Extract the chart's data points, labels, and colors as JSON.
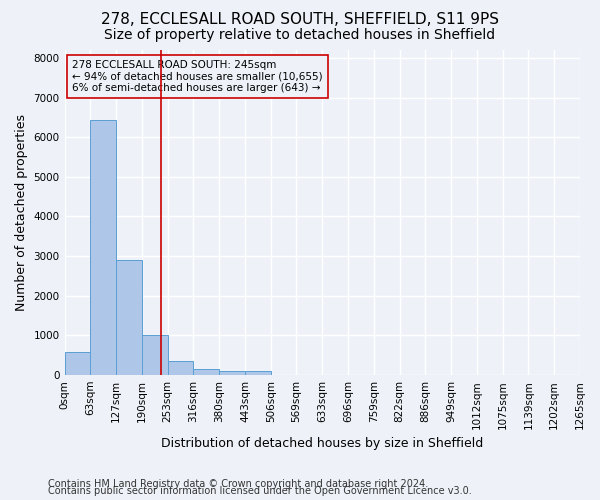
{
  "title_line1": "278, ECCLESALL ROAD SOUTH, SHEFFIELD, S11 9PS",
  "title_line2": "Size of property relative to detached houses in Sheffield",
  "xlabel": "Distribution of detached houses by size in Sheffield",
  "ylabel": "Number of detached properties",
  "bar_values": [
    570,
    6430,
    2900,
    1000,
    350,
    160,
    100,
    100,
    0,
    0,
    0,
    0,
    0,
    0,
    0,
    0,
    0,
    0,
    0,
    0
  ],
  "bar_labels": [
    "0sqm",
    "63sqm",
    "127sqm",
    "190sqm",
    "253sqm",
    "316sqm",
    "380sqm",
    "443sqm",
    "506sqm",
    "569sqm",
    "633sqm",
    "696sqm",
    "759sqm",
    "822sqm",
    "886sqm",
    "949sqm",
    "1012sqm",
    "1075sqm",
    "1139sqm",
    "1202sqm"
  ],
  "tick_label_after": "1265sqm",
  "bar_color": "#aec6e8",
  "bar_edge_color": "#5a9fd4",
  "vline_x": 3.75,
  "vline_color": "#cc0000",
  "annotation_text": "278 ECCLESALL ROAD SOUTH: 245sqm\n← 94% of detached houses are smaller (10,655)\n6% of semi-detached houses are larger (643) →",
  "annotation_box_color": "#cc0000",
  "ylim": [
    0,
    8200
  ],
  "yticks": [
    0,
    1000,
    2000,
    3000,
    4000,
    5000,
    6000,
    7000,
    8000
  ],
  "footer_line1": "Contains HM Land Registry data © Crown copyright and database right 2024.",
  "footer_line2": "Contains public sector information licensed under the Open Government Licence v3.0.",
  "background_color": "#eef2f8",
  "plot_bg_color": "#eef2f8",
  "grid_color": "#ffffff",
  "title_fontsize": 11,
  "subtitle_fontsize": 10,
  "axis_label_fontsize": 9,
  "tick_fontsize": 7.5,
  "footer_fontsize": 7
}
